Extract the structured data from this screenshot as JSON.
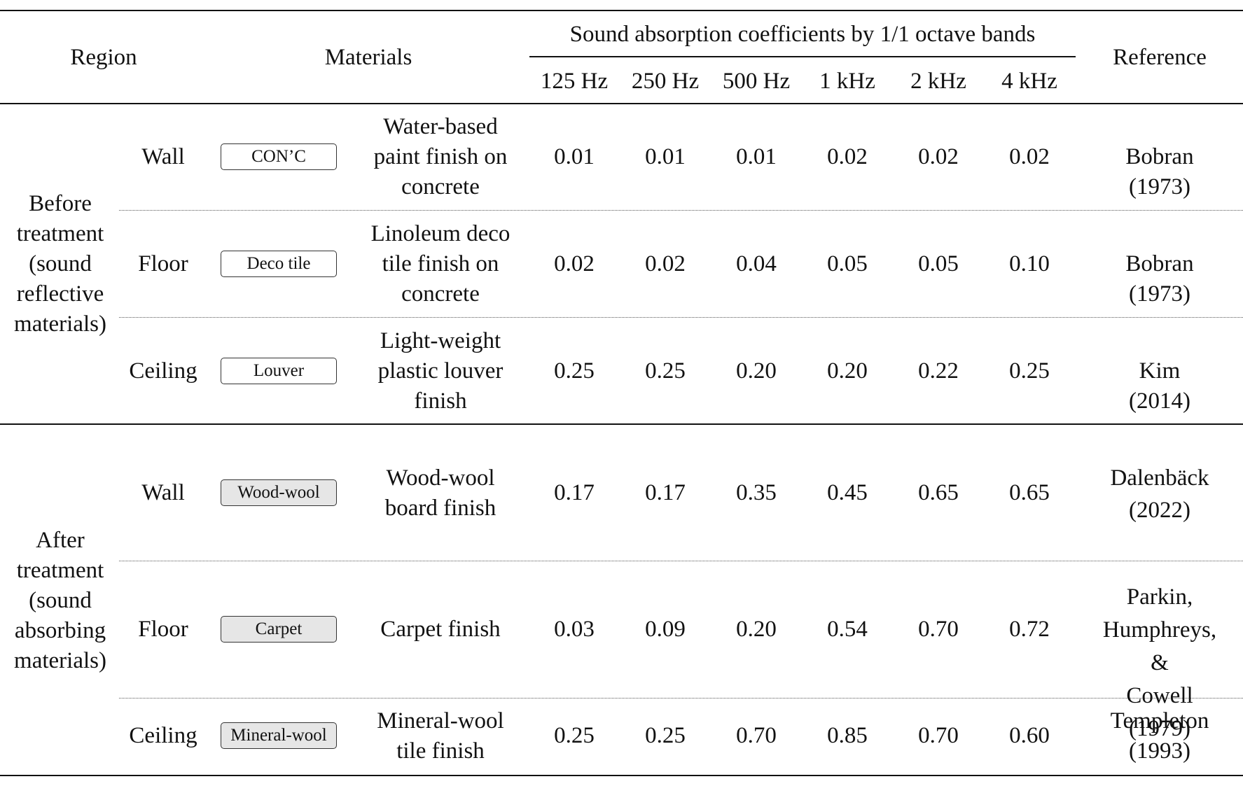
{
  "header": {
    "region": "Region",
    "materials": "Materials",
    "group": "Sound absorption coefficients by 1/1 octave bands",
    "bands": [
      "125 Hz",
      "250 Hz",
      "500 Hz",
      "1 kHz",
      "2 kHz",
      "4 kHz"
    ],
    "reference": "Reference"
  },
  "groups": [
    {
      "region": "Before\ntreatment\n(sound\nreflective\nmaterials)",
      "rows": [
        {
          "surface": "Wall",
          "tag": "CON’C",
          "tag_filled": false,
          "material": "Water-based\npaint finish on\nconcrete",
          "values": [
            "0.01",
            "0.01",
            "0.01",
            "0.02",
            "0.02",
            "0.02"
          ],
          "reference": "Bobran (1973)"
        },
        {
          "surface": "Floor",
          "tag": "Deco tile",
          "tag_filled": false,
          "material": "Linoleum deco\ntile finish on\nconcrete",
          "values": [
            "0.02",
            "0.02",
            "0.04",
            "0.05",
            "0.05",
            "0.10"
          ],
          "reference": "Bobran (1973)"
        },
        {
          "surface": "Ceiling",
          "tag": "Louver",
          "tag_filled": false,
          "material": "Light-weight\nplastic louver\nfinish",
          "values": [
            "0.25",
            "0.25",
            "0.20",
            "0.20",
            "0.22",
            "0.25"
          ],
          "reference": "Kim (2014)"
        }
      ]
    },
    {
      "region": "After\ntreatment\n(sound\nabsorbing\nmaterials)",
      "rows": [
        {
          "surface": "Wall",
          "tag": "Wood-wool",
          "tag_filled": true,
          "material": "Wood-wool\nboard finish",
          "values": [
            "0.17",
            "0.17",
            "0.35",
            "0.45",
            "0.65",
            "0.65"
          ],
          "reference": "Dalenbäck\n(2022)"
        },
        {
          "surface": "Floor",
          "tag": "Carpet",
          "tag_filled": true,
          "material": "Carpet finish",
          "values": [
            "0.03",
            "0.09",
            "0.20",
            "0.54",
            "0.70",
            "0.72"
          ],
          "reference": "Parkin,\nHumphreys, &\nCowell (1979)"
        },
        {
          "surface": "Ceiling",
          "tag": "Mineral-wool",
          "tag_filled": true,
          "material": "Mineral-wool\ntile finish",
          "values": [
            "0.25",
            "0.25",
            "0.70",
            "0.85",
            "0.70",
            "0.60"
          ],
          "reference": "Templeton\n(1993)"
        }
      ]
    }
  ]
}
